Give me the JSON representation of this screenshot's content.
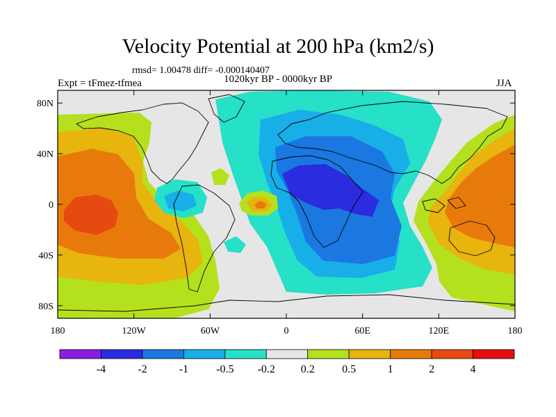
{
  "title": "Velocity Potential at 200 hPa (km2/s)",
  "stats": "rmsd= 1.00478 diff= -0.000140407",
  "left_label": "Expt = tFmez-tfmea",
  "center_label": "1020kyr BP - 0000kyr BP",
  "right_label": "JJA",
  "map": {
    "projection": "cylindrical-equidistant",
    "lon_range": [
      -180,
      180
    ],
    "lat_range": [
      -90,
      90
    ],
    "lon_ticks": [
      "180",
      "120W",
      "60W",
      "0",
      "60E",
      "120E",
      "180"
    ],
    "lat_ticks": [
      "80N",
      "40N",
      "0",
      "40S",
      "80S"
    ],
    "background_color": "#e6e6e6",
    "features": [
      {
        "name": "Pacific positive maximum",
        "lon": -165,
        "lat": -12,
        "level": "2 to 4"
      },
      {
        "name": "Africa negative minimum",
        "lon": 25,
        "lat": 15,
        "level": "-4 to -2"
      },
      {
        "name": "Tropical Atlantic positive center",
        "lon": -17,
        "lat": 2,
        "level": "1 to 2"
      },
      {
        "name": "Western Pacific positive region",
        "lon": 140,
        "lat": 0,
        "level": "1 to 2"
      }
    ]
  },
  "colorbar": {
    "labels": [
      "-4",
      "-2",
      "-1",
      "-0.5",
      "-0.2",
      "0.2",
      "0.5",
      "1",
      "2",
      "4"
    ],
    "colors": [
      "#8a1de0",
      "#2b2be0",
      "#1a78e0",
      "#18aee8",
      "#26e0c8",
      "#e6e6e6",
      "#b4e01e",
      "#e8b40e",
      "#e87a0c",
      "#e64a10",
      "#e60e0e"
    ]
  }
}
